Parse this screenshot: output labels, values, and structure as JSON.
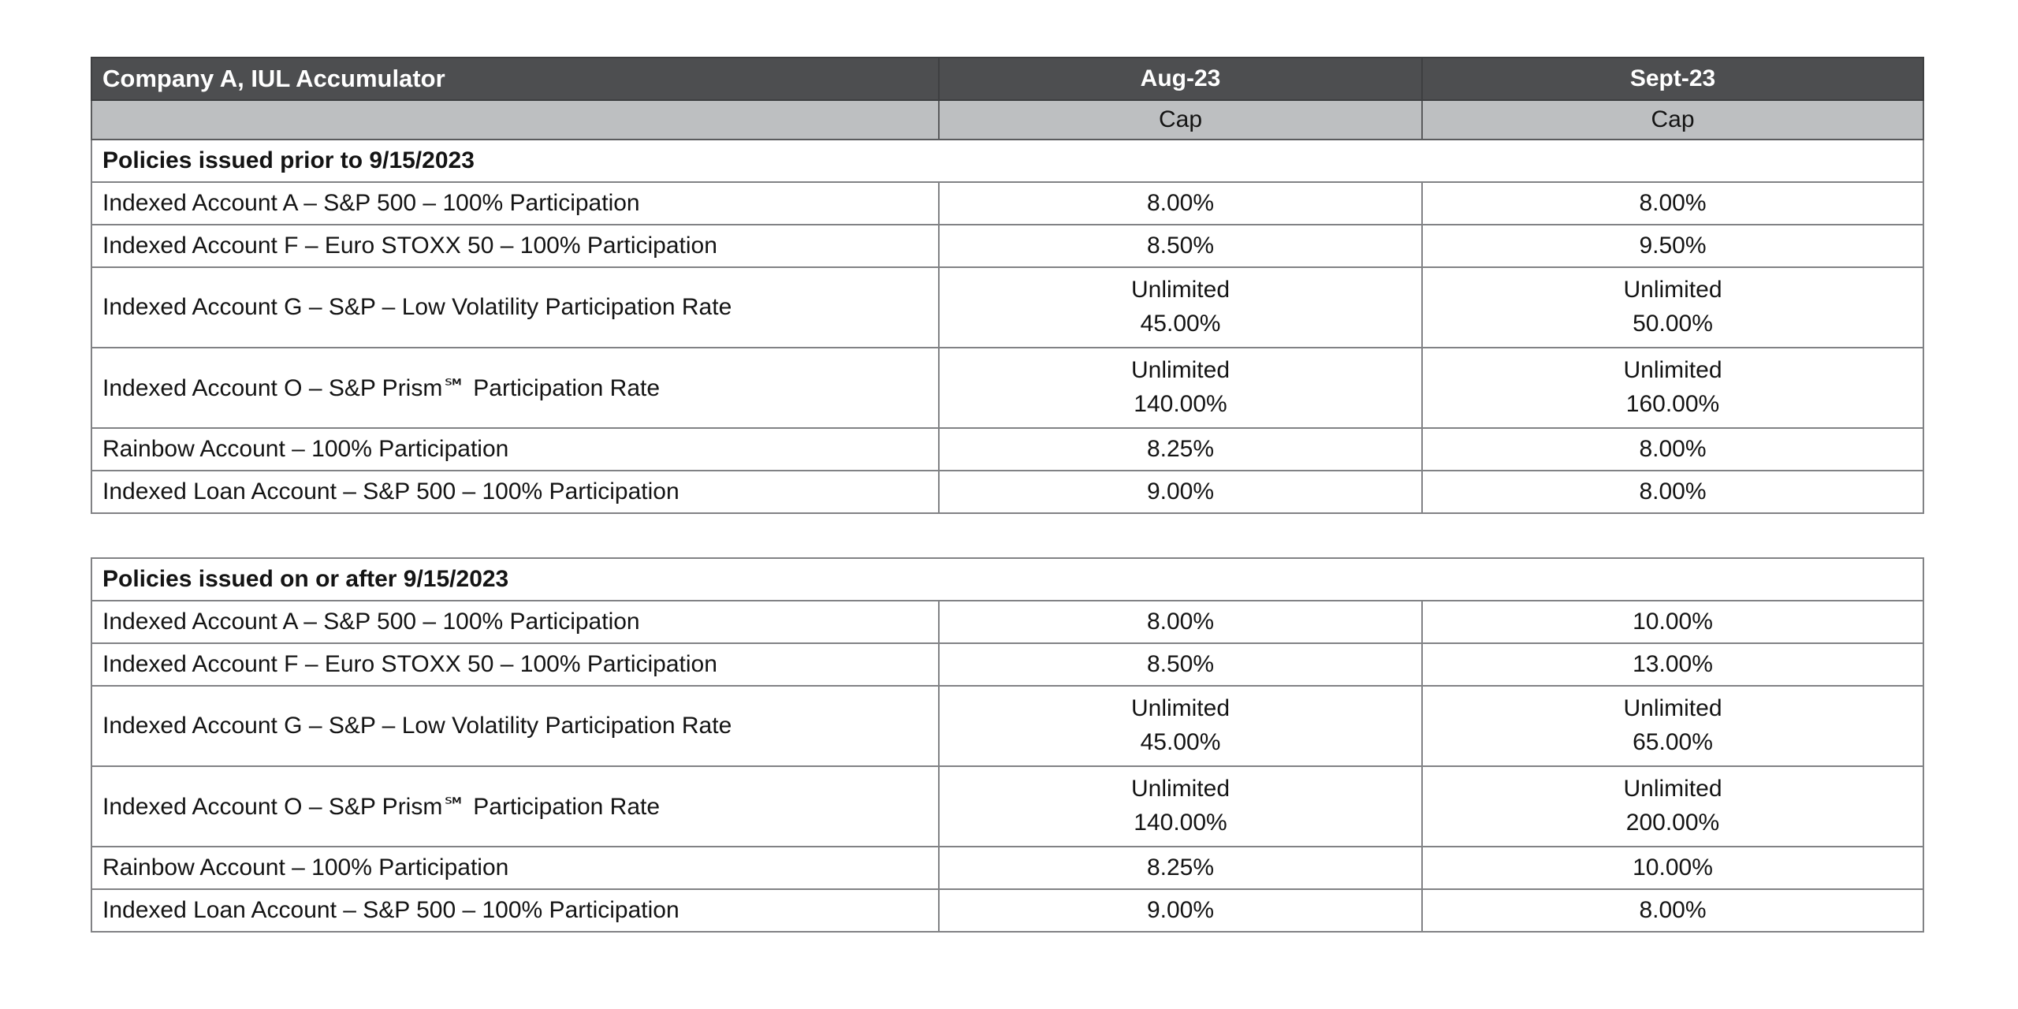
{
  "colors": {
    "header_bg": "#4d4e50",
    "header_text": "#ffffff",
    "subheader_bg": "#bdbfc1",
    "border": "#818285",
    "text": "#141414",
    "page_bg": "#ffffff"
  },
  "table": {
    "title": "Company A, IUL Accumulator",
    "columns": [
      "Aug-23",
      "Sept-23"
    ],
    "subheaders": [
      "Cap",
      "Cap"
    ],
    "sections": [
      {
        "heading": "Policies issued prior to 9/15/2023",
        "rows": [
          {
            "label": "Indexed Account A – S&P 500 – 100% Participation",
            "aug": "8.00%",
            "sept": "8.00%"
          },
          {
            "label": "Indexed Account F – Euro STOXX 50 – 100% Participation",
            "aug": "8.50%",
            "sept": "9.50%"
          },
          {
            "label": "Indexed Account G – S&P – Low Volatility Participation Rate",
            "aug": "Unlimited\n45.00%",
            "sept": "Unlimited\n50.00%"
          },
          {
            "label": "Indexed Account O – S&P Prism℠ Participation Rate",
            "aug": "Unlimited\n140.00%",
            "sept": "Unlimited\n160.00%"
          },
          {
            "label": "Rainbow Account – 100% Participation",
            "aug": "8.25%",
            "sept": "8.00%"
          },
          {
            "label": "Indexed Loan Account – S&P 500 – 100% Participation",
            "aug": "9.00%",
            "sept": "8.00%"
          }
        ]
      },
      {
        "heading": "Policies issued on or after 9/15/2023",
        "rows": [
          {
            "label": "Indexed Account A – S&P 500 – 100% Participation",
            "aug": "8.00%",
            "sept": "10.00%"
          },
          {
            "label": "Indexed Account F – Euro STOXX 50 – 100% Participation",
            "aug": "8.50%",
            "sept": "13.00%"
          },
          {
            "label": "Indexed Account G – S&P – Low Volatility Participation Rate",
            "aug": "Unlimited\n45.00%",
            "sept": "Unlimited\n65.00%"
          },
          {
            "label": "Indexed Account O – S&P Prism℠ Participation Rate",
            "aug": "Unlimited\n140.00%",
            "sept": "Unlimited\n200.00%"
          },
          {
            "label": "Rainbow Account – 100% Participation",
            "aug": "8.25%",
            "sept": "10.00%"
          },
          {
            "label": "Indexed Loan Account – S&P 500 – 100% Participation",
            "aug": "9.00%",
            "sept": "8.00%"
          }
        ]
      }
    ]
  }
}
